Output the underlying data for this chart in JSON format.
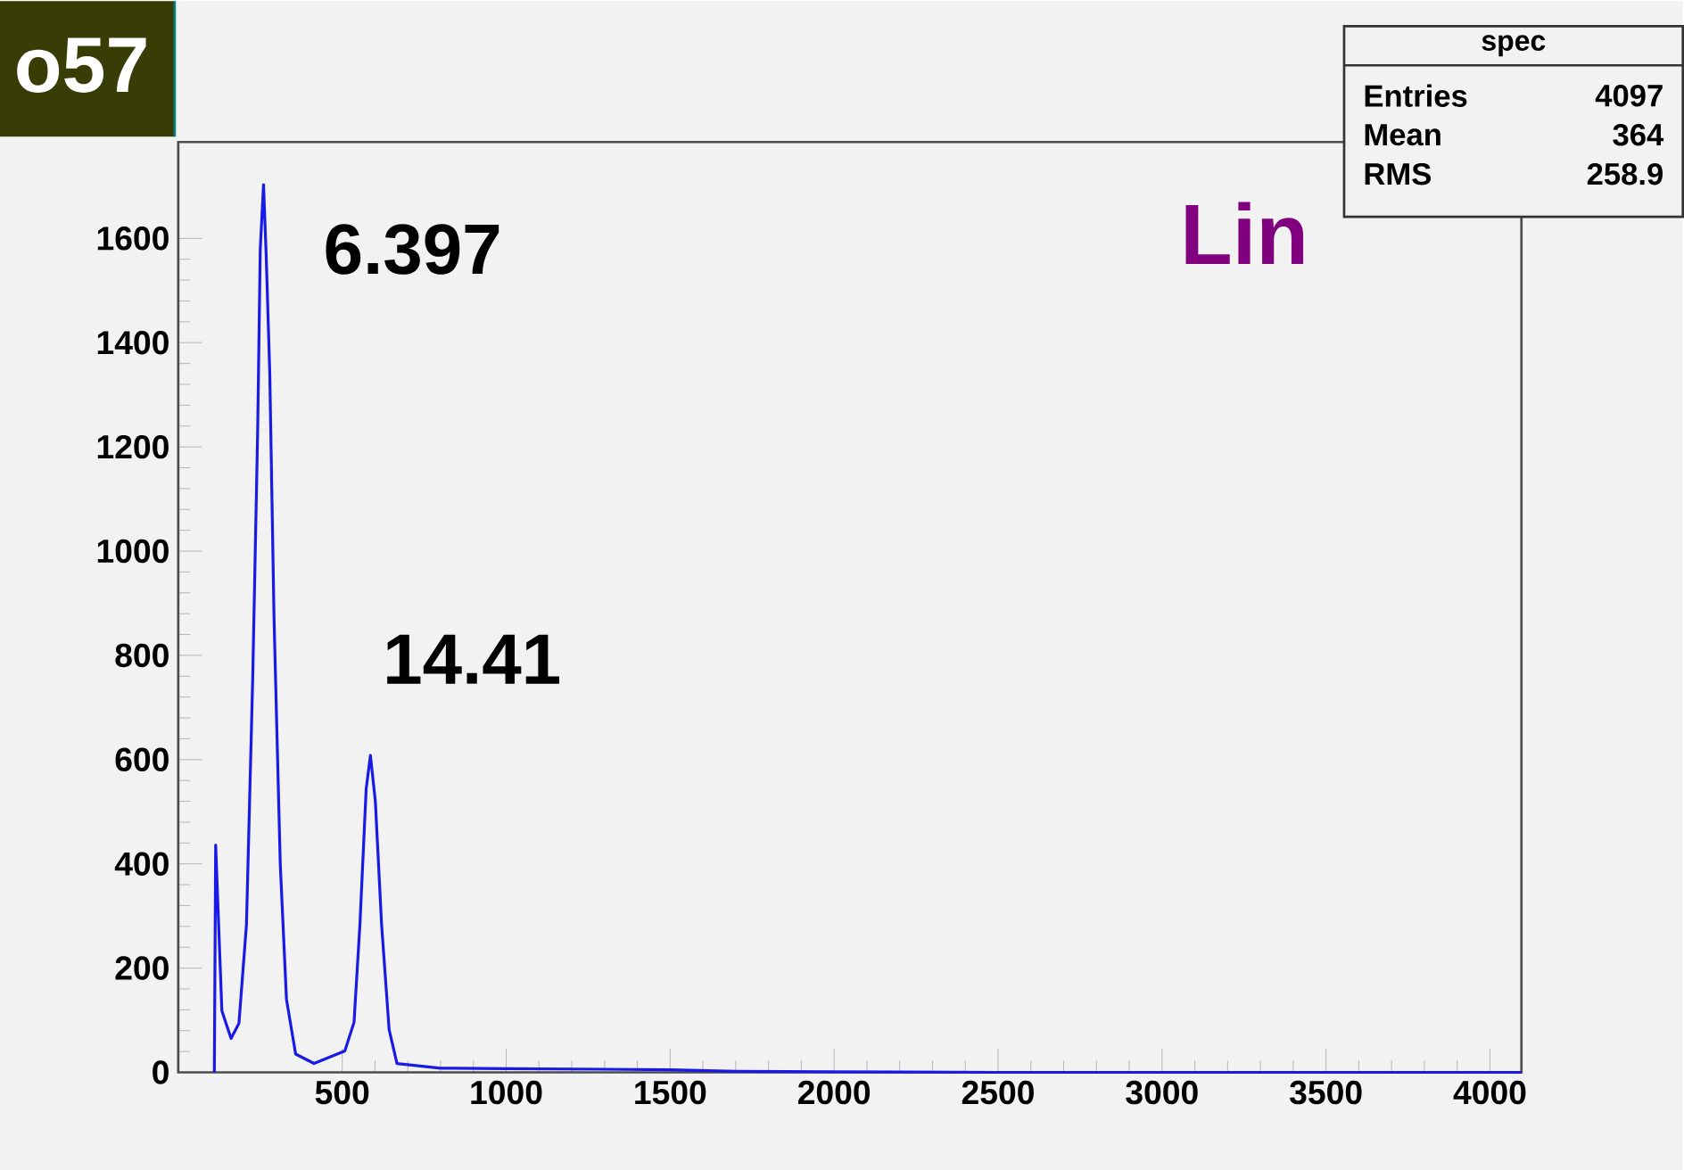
{
  "chart_data": {
    "type": "line",
    "x": [
      110,
      114,
      133,
      161,
      185,
      208,
      227,
      242,
      250,
      260,
      268,
      279,
      292,
      311,
      330,
      358,
      414,
      508,
      536,
      554,
      573,
      586,
      601,
      620,
      643,
      667,
      800,
      1000,
      1300,
      1500,
      1700,
      2000,
      2500,
      3000,
      4096
    ],
    "series": [
      {
        "color": "#1a1ae6",
        "values": [
          0,
          436,
          118,
          65,
          94,
          284,
          756,
          1227,
          1579,
          1703,
          1569,
          1343,
          872,
          400,
          140,
          35,
          17,
          41,
          96,
          284,
          544,
          608,
          520,
          284,
          82,
          17,
          8,
          7,
          6,
          5,
          2,
          1,
          0,
          0,
          0
        ]
      }
    ],
    "xlim": [
      0,
      4096
    ],
    "ylim": [
      0,
      1785
    ],
    "xticks": [
      500,
      1000,
      1500,
      2000,
      2500,
      3000,
      3500,
      4000
    ],
    "yticks": [
      0,
      200,
      400,
      600,
      800,
      1000,
      1200,
      1400,
      1600
    ],
    "marker": "none",
    "line_style": "solid",
    "annotations": [
      {
        "text": "6.397",
        "x": 260,
        "y": 1703
      },
      {
        "text": "14.41",
        "x": 586,
        "y": 608
      },
      "Lin",
      "o57",
      "spec",
      "Entries",
      "4097",
      "Mean",
      "364",
      "RMS",
      "258.9"
    ]
  }
}
